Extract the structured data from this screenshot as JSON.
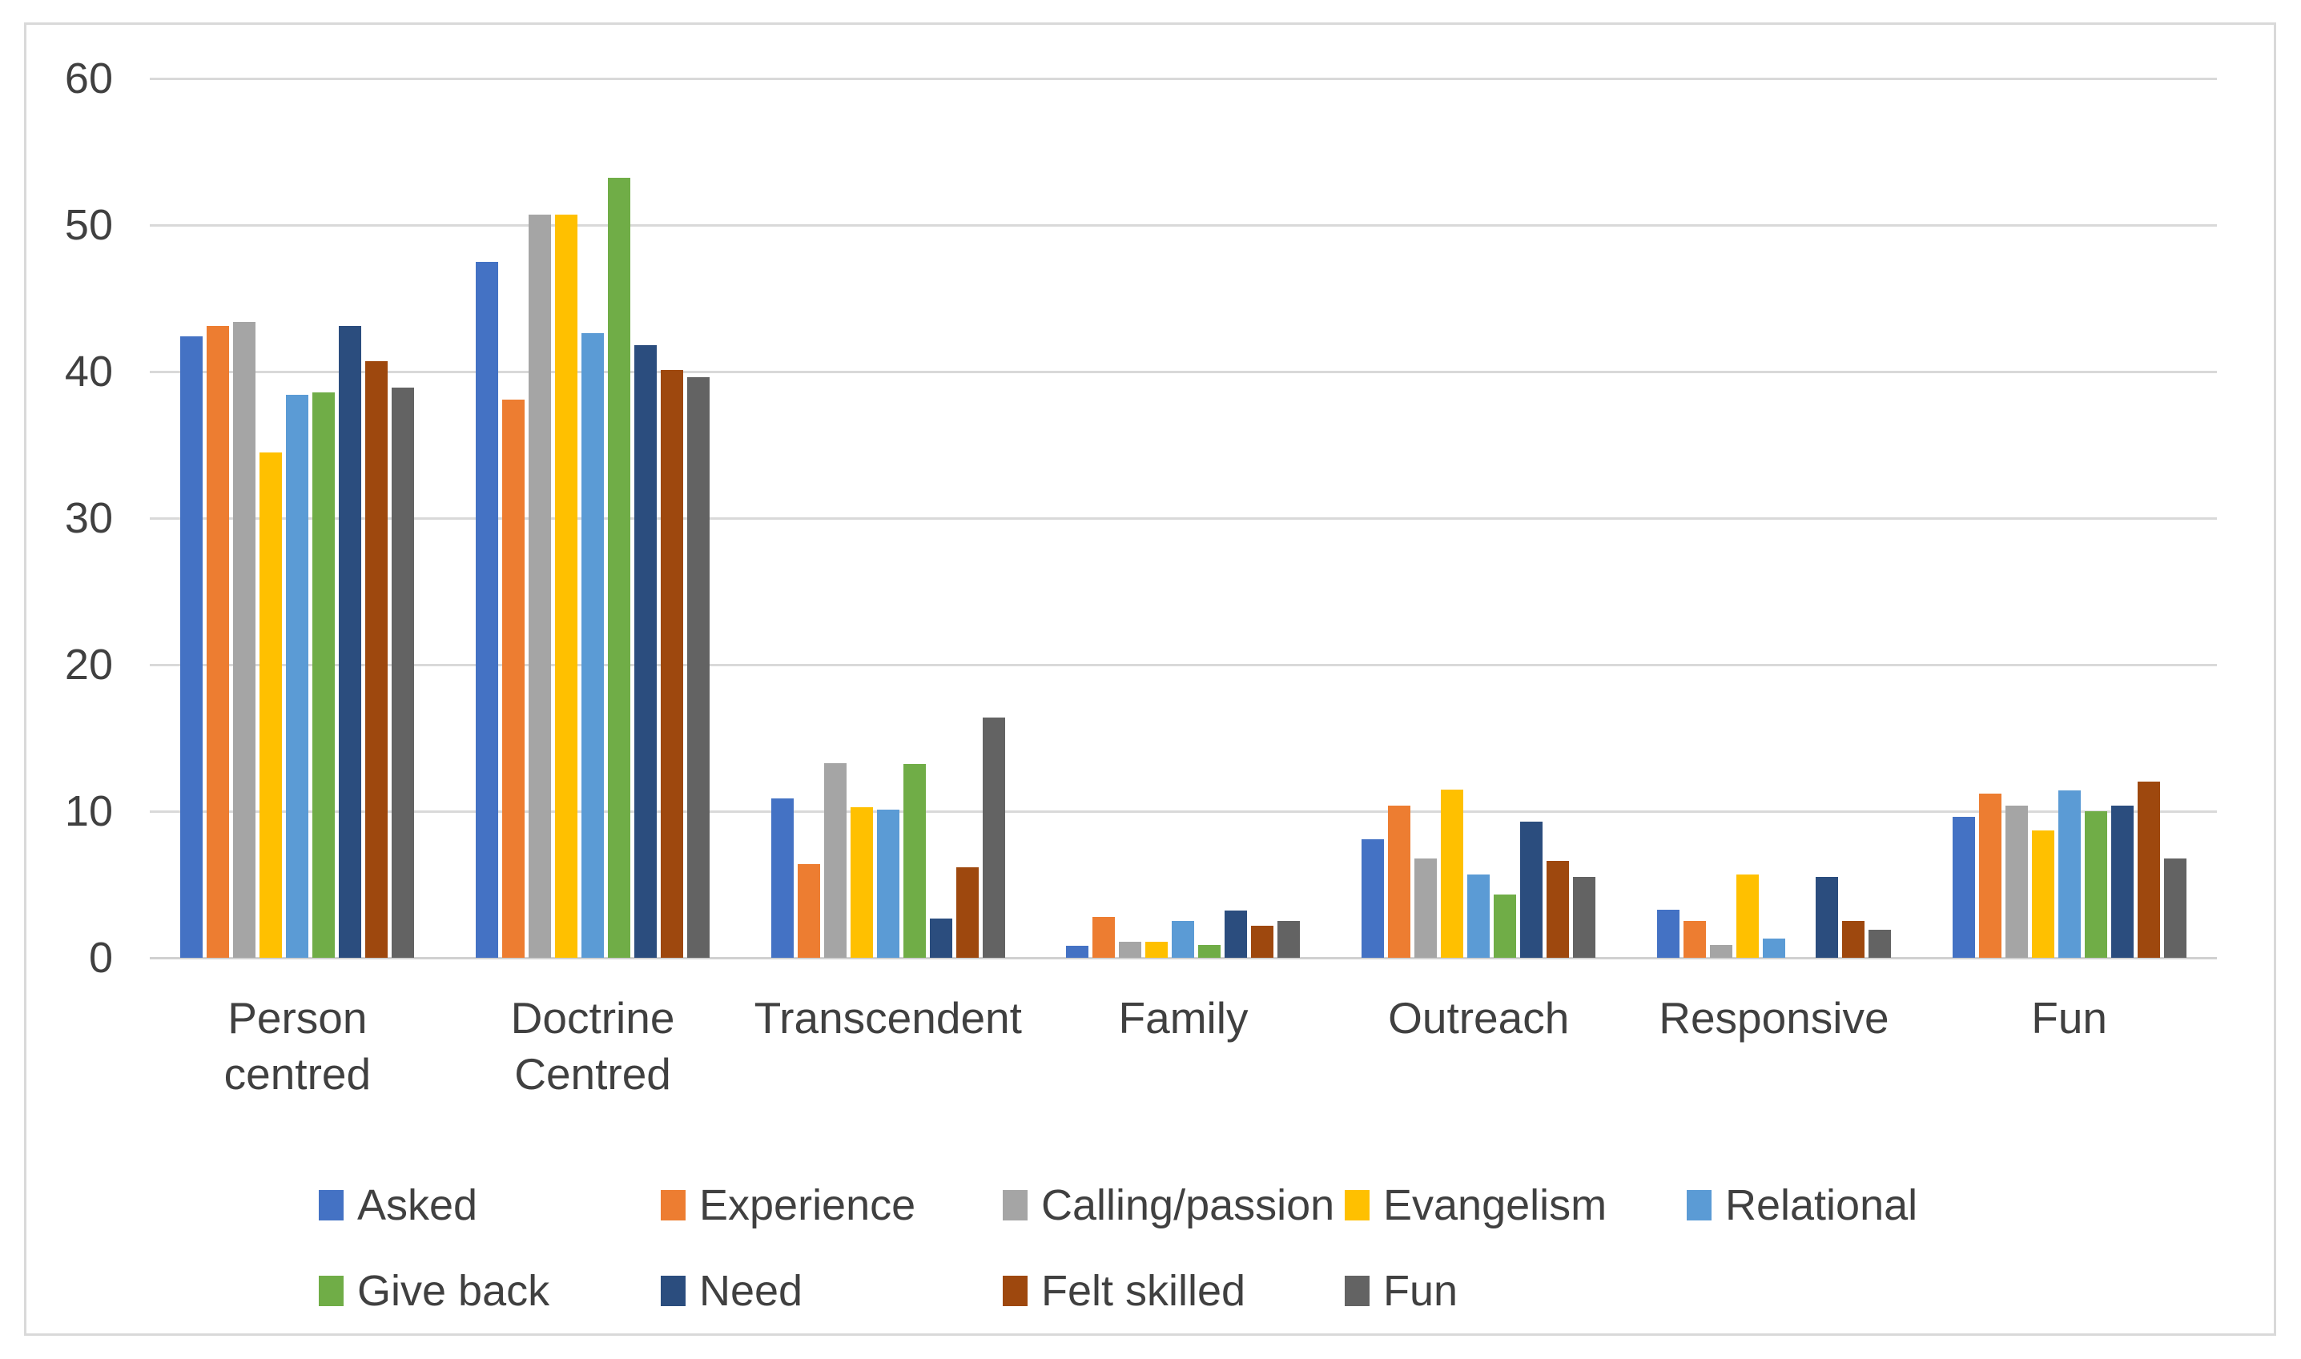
{
  "chart_data": {
    "type": "bar",
    "title": "",
    "xlabel": "",
    "ylabel": "",
    "ylim": [
      0,
      60
    ],
    "yticks": [
      0,
      10,
      20,
      30,
      40,
      50,
      60
    ],
    "grid": true,
    "legend_position": "bottom",
    "categories": [
      "Person centred",
      "Doctrine Centred",
      "Transcendent",
      "Family",
      "Outreach",
      "Responsive",
      "Fun"
    ],
    "category_display": [
      "Person centred",
      "Doctrine\nCentred",
      "Transcendent",
      "Family",
      "Outreach",
      "Responsive",
      "Fun"
    ],
    "series": [
      {
        "name": "Asked",
        "color": "#4472C4",
        "values": [
          42.4,
          47.5,
          10.9,
          0.8,
          8.1,
          3.3,
          9.6
        ]
      },
      {
        "name": "Experience",
        "color": "#ED7D31",
        "values": [
          43.1,
          38.1,
          6.4,
          2.8,
          10.4,
          2.5,
          11.2
        ]
      },
      {
        "name": "Calling/passion",
        "color": "#A5A5A5",
        "values": [
          43.4,
          50.7,
          13.3,
          1.1,
          6.8,
          0.9,
          10.4
        ]
      },
      {
        "name": "Evangelism",
        "color": "#FFC000",
        "values": [
          34.5,
          50.7,
          10.3,
          1.1,
          11.5,
          5.7,
          8.7
        ]
      },
      {
        "name": "Relational",
        "color": "#5B9BD5",
        "values": [
          38.4,
          42.6,
          10.1,
          2.5,
          5.7,
          1.3,
          11.4
        ]
      },
      {
        "name": "Give back",
        "color": "#70AD47",
        "values": [
          38.6,
          53.2,
          13.2,
          0.9,
          4.3,
          0,
          10.0
        ]
      },
      {
        "name": "Need",
        "color": "#2B4D7E",
        "values": [
          43.1,
          41.8,
          2.7,
          3.2,
          9.3,
          5.5,
          10.4
        ]
      },
      {
        "name": "Felt skilled",
        "color": "#9E480E",
        "values": [
          40.7,
          40.1,
          6.2,
          2.2,
          6.6,
          2.5,
          12.0
        ]
      },
      {
        "name": "Fun",
        "color": "#636363",
        "values": [
          38.9,
          39.6,
          16.4,
          2.5,
          5.5,
          1.9,
          6.8
        ]
      }
    ],
    "legend_rows": [
      [
        "Asked",
        "Experience",
        "Calling/passion",
        "Evangelism",
        "Relational"
      ],
      [
        "Give back",
        "Need",
        "Felt skilled",
        "Fun"
      ]
    ],
    "colors": {
      "gridline": "#D9D9D9",
      "text": "#404040",
      "frame_border": "#D9D9D9",
      "background": "#FFFFFF"
    }
  }
}
